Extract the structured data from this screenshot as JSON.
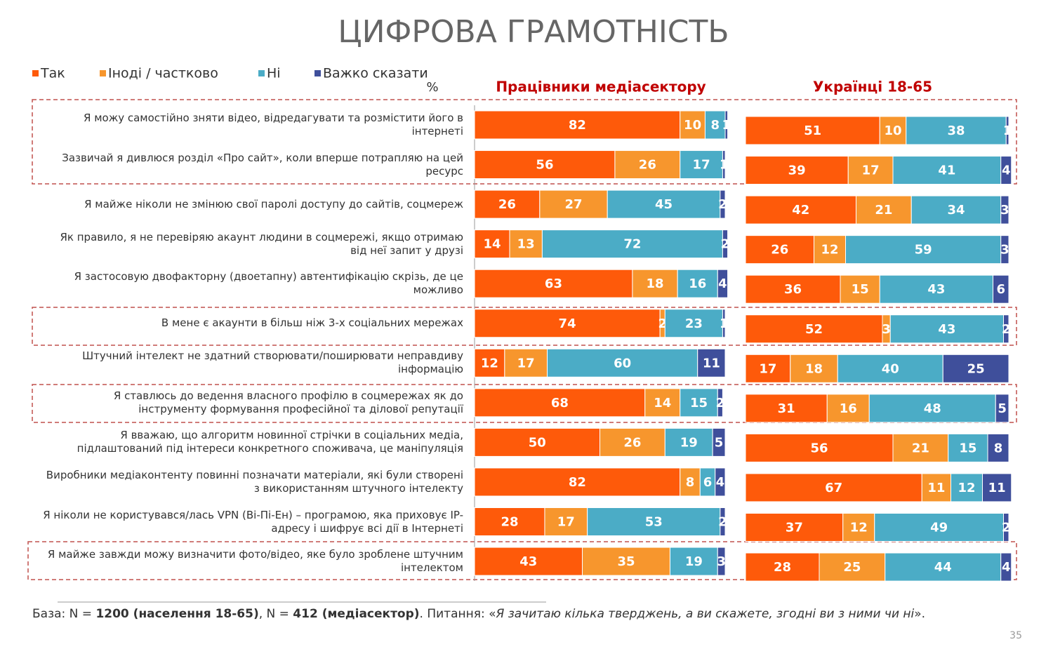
{
  "chart_data": {
    "type": "bar",
    "orientation": "horizontal",
    "stacked": true,
    "title": "ЦИФРОВА ГРАМОТНІСТЬ",
    "unit_label": "%",
    "categories": [
      "Я можу самостійно зняти відео, відредагувати та розмістити його в інтернеті",
      "Зазвичай я дивлюся розділ «Про сайт», коли вперше потрапляю на цей ресурс",
      "Я майже ніколи не змінюю свої паролі доступу до сайтів, соцмереж",
      "Як правило, я не перевіряю акаунт людини в соцмережі, якщо отримаю від неї запит у друзі",
      "Я застосовую двофакторну (двоетапну) автентифікацію скрізь, де це можливо",
      "В мене є акаунти в більш ніж 3-х соціальних мережах",
      "Штучний інтелект не здатний створювати/поширювати неправдиву інформацію",
      "Я ставлюсь до ведення власного профілю в соцмережах як до інструменту формування професійної та ділової репутації",
      "Я вважаю, що алгоритм новинної стрічки в соціальних медіа, підлаштований під інтереси конкретного споживача, це маніпуляція",
      "Виробники медіаконтенту повинні позначати матеріали, які були створені з використанням штучного інтелекту",
      "Я ніколи не користувався/лась VPN (Ві-Пі-Ен) – програмою, яка приховує IP-адресу і шифрує всі дії в Інтернеті",
      "Я майже завжди можу визначити фото/відео, яке було зроблене штучним інтелектом"
    ],
    "series": [
      {
        "name": "Так",
        "color": "#fe5a0a"
      },
      {
        "name": "Іноді / частково",
        "color": "#f7962d"
      },
      {
        "name": "Ні",
        "color": "#4bacc6"
      },
      {
        "name": "Важко сказати",
        "color": "#3f4f9b"
      }
    ],
    "xlim": [
      0,
      100
    ],
    "panels": [
      {
        "title": "Працівники медіасектору",
        "series": [
          {
            "values": [
              82,
              56,
              26,
              14,
              63,
              74,
              12,
              68,
              50,
              82,
              28,
              43
            ]
          },
          {
            "values": [
              10,
              26,
              27,
              13,
              18,
              2,
              17,
              14,
              26,
              8,
              17,
              35
            ]
          },
          {
            "values": [
              8,
              17,
              45,
              72,
              16,
              23,
              60,
              15,
              19,
              6,
              53,
              19
            ]
          },
          {
            "values": [
              1,
              1,
              2,
              2,
              4,
              1,
              11,
              2,
              5,
              4,
              2,
              3
            ]
          }
        ]
      },
      {
        "title": "Українці 18-65",
        "series": [
          {
            "values": [
              51,
              39,
              42,
              26,
              36,
              52,
              17,
              31,
              56,
              67,
              37,
              28
            ]
          },
          {
            "values": [
              10,
              17,
              21,
              12,
              15,
              3,
              18,
              16,
              21,
              11,
              12,
              25
            ]
          },
          {
            "values": [
              38,
              41,
              34,
              59,
              43,
              43,
              40,
              48,
              15,
              12,
              49,
              44
            ]
          },
          {
            "values": [
              1,
              4,
              3,
              3,
              6,
              2,
              25,
              5,
              8,
              11,
              2,
              4
            ]
          }
        ]
      }
    ]
  },
  "footnote": {
    "parts": [
      {
        "text": "База: N = ",
        "style": "normal"
      },
      {
        "text": "1200 (населення 18-65)",
        "style": "bold"
      },
      {
        "text": ", N = ",
        "style": "normal"
      },
      {
        "text": "412 (медіасектор)",
        "style": "bold"
      },
      {
        "text": ". Питання: «",
        "style": "normal"
      },
      {
        "text": "Я зачитаю кілька тверджень, а ви скажете, згодні ви з ними чи ні",
        "style": "italic"
      },
      {
        "text": "».",
        "style": "normal"
      }
    ]
  },
  "page_number": "35"
}
